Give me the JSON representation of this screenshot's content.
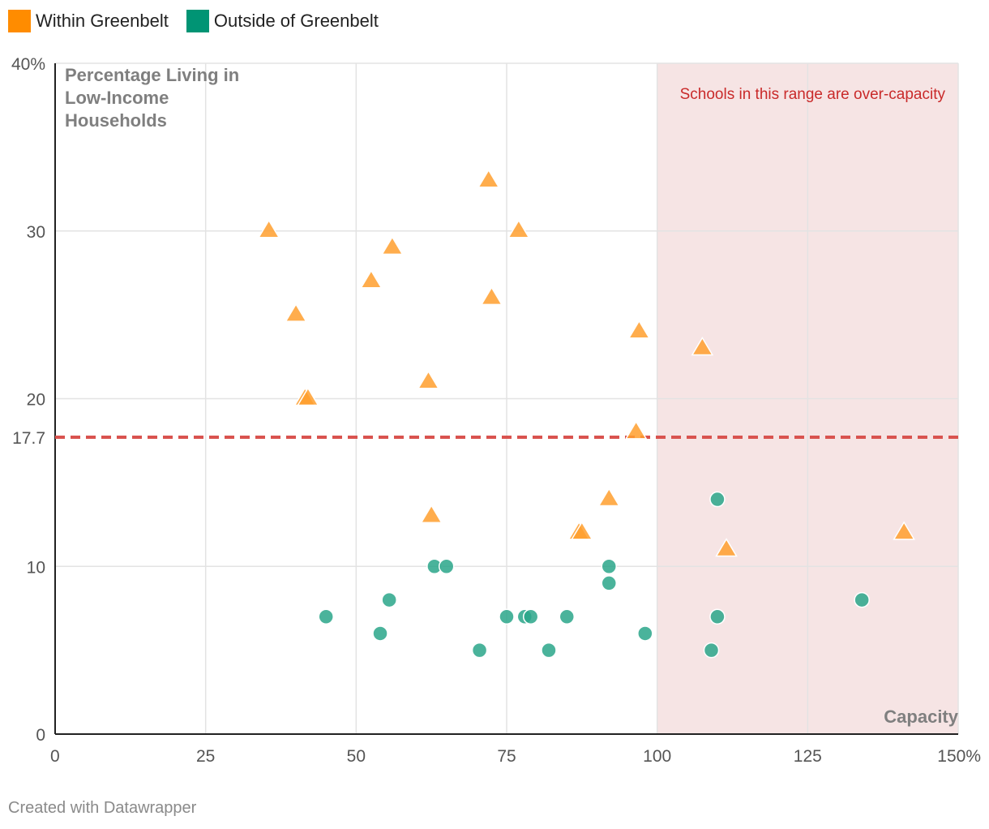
{
  "legend": [
    {
      "label": "Within Greenbelt",
      "color": "#ff8c00"
    },
    {
      "label": "Outside of Greenbelt",
      "color": "#009474"
    }
  ],
  "footer": "Created with Datawrapper",
  "chart_data": {
    "type": "scatter",
    "ylabel": "Percentage Living in Low-Income Households",
    "xlabel": "Capacity",
    "xlim": [
      0,
      150
    ],
    "ylim": [
      0,
      40
    ],
    "x_ticks": [
      "0",
      "25",
      "50",
      "75",
      "100",
      "125",
      "150%"
    ],
    "x_tick_values": [
      0,
      25,
      50,
      75,
      100,
      125,
      150
    ],
    "y_ticks": [
      "0",
      "10",
      "20",
      "30",
      "40%"
    ],
    "y_tick_values": [
      0,
      10,
      20,
      30,
      40
    ],
    "grid": true,
    "reference_line": {
      "y": 17.7,
      "label": "17.7",
      "color": "#d9534f"
    },
    "shaded_region": {
      "x_start": 100,
      "x_end": 150,
      "label": "Schools in this range are over-capacity",
      "color": "#f6e4e4"
    },
    "series": [
      {
        "name": "Within Greenbelt",
        "marker": "triangle",
        "color": "#ff9f2e",
        "points": [
          [
            35.5,
            30
          ],
          [
            40,
            25
          ],
          [
            41.5,
            20
          ],
          [
            42,
            20
          ],
          [
            52.5,
            27
          ],
          [
            56,
            29
          ],
          [
            62,
            21
          ],
          [
            62.5,
            13
          ],
          [
            72,
            33
          ],
          [
            72.5,
            26
          ],
          [
            77,
            30
          ],
          [
            87,
            12
          ],
          [
            87.5,
            12
          ],
          [
            92,
            14
          ],
          [
            96.5,
            18
          ],
          [
            97,
            24
          ],
          [
            107.5,
            23
          ],
          [
            111.5,
            11
          ],
          [
            141,
            12
          ]
        ]
      },
      {
        "name": "Outside of Greenbelt",
        "marker": "circle",
        "color": "#2aa689",
        "points": [
          [
            45,
            7
          ],
          [
            54,
            6
          ],
          [
            55.5,
            8
          ],
          [
            63,
            10
          ],
          [
            65,
            10
          ],
          [
            70.5,
            5
          ],
          [
            75,
            7
          ],
          [
            78,
            7
          ],
          [
            79,
            7
          ],
          [
            82,
            5
          ],
          [
            85,
            7
          ],
          [
            92,
            10
          ],
          [
            92,
            9
          ],
          [
            98,
            6
          ],
          [
            109,
            5
          ],
          [
            110,
            14
          ],
          [
            110,
            7
          ],
          [
            134,
            8
          ]
        ]
      }
    ]
  }
}
